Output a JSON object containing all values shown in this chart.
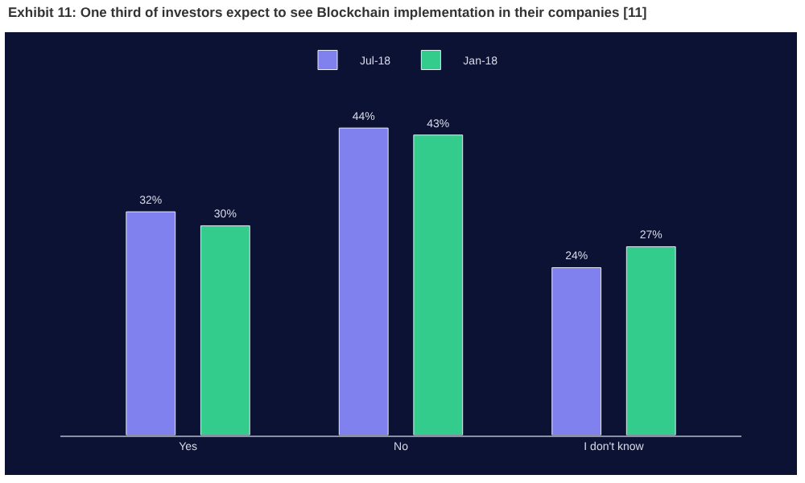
{
  "chart_data": {
    "type": "bar",
    "title": "Exhibit 11: One third of investors expect to see Blockchain implementation in their companies [11]",
    "categories": [
      "Yes",
      "No",
      "I don't know"
    ],
    "series": [
      {
        "name": "Jul-18",
        "color": "#8080ee",
        "values": [
          32,
          44,
          24
        ],
        "value_labels": [
          "32%",
          "44%",
          "24%"
        ]
      },
      {
        "name": "Jan-18",
        "color": "#33cc8c",
        "values": [
          30,
          43,
          27
        ],
        "value_labels": [
          "30%",
          "43%",
          "27%"
        ]
      }
    ],
    "grid": false,
    "legend": "top"
  }
}
